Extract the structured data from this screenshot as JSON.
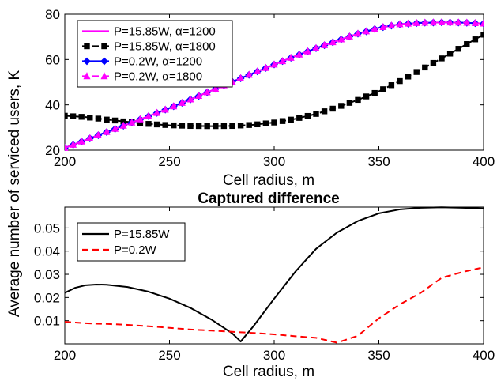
{
  "ylabel_shared": "Average number of serviced users, K",
  "chart_data": [
    {
      "type": "line",
      "title": "",
      "xlabel": "Cell radius, m",
      "ylabel": "",
      "xlim": [
        200,
        400
      ],
      "ylim": [
        20,
        80
      ],
      "xticks": [
        "200",
        "250",
        "300",
        "350",
        "400"
      ],
      "yticks": [
        "20",
        "40",
        "60",
        "80"
      ],
      "grid": false,
      "legend": "top-left",
      "x": [
        200,
        210,
        220,
        230,
        240,
        250,
        260,
        270,
        280,
        290,
        300,
        310,
        320,
        330,
        340,
        350,
        360,
        370,
        380,
        390,
        400
      ],
      "series": [
        {
          "name": "P=15.85W, α=1200",
          "color": "#ff00ff",
          "style": "solid",
          "marker": "none",
          "values": [
            21,
            24.5,
            28,
            31.5,
            35,
            38.6,
            42.4,
            46.3,
            50.2,
            54,
            57.8,
            61.5,
            65,
            68.3,
            71.4,
            74,
            75.6,
            76.2,
            76.4,
            76.3,
            75.9
          ]
        },
        {
          "name": "P=15.85W, α=1800",
          "color": "#000000",
          "style": "dashed",
          "marker": "square",
          "values": [
            35.2,
            34.6,
            33.5,
            32.5,
            31.6,
            31,
            30.7,
            30.6,
            30.7,
            31.2,
            32.2,
            33.8,
            36,
            38.9,
            42.2,
            46,
            50.5,
            55.5,
            60.5,
            65.8,
            71
          ]
        },
        {
          "name": "P=0.2W, α=1200",
          "color": "#0000ff",
          "style": "solid",
          "marker": "diamond",
          "values": [
            21,
            24.5,
            28,
            31.5,
            35,
            38.6,
            42.4,
            46.3,
            50.2,
            54,
            57.8,
            61.5,
            65,
            68.3,
            71.4,
            74,
            75.6,
            76.2,
            76.4,
            76.3,
            75.9
          ]
        },
        {
          "name": "P=0.2W, α=1800",
          "color": "#ff00ff",
          "style": "dashed",
          "marker": "triangle",
          "values": [
            21,
            24.5,
            28,
            31.5,
            35,
            38.6,
            42.4,
            46.3,
            50.2,
            54,
            57.8,
            61.5,
            65,
            68.3,
            71.4,
            74,
            75.6,
            76.2,
            76.4,
            76.3,
            75.9
          ]
        }
      ]
    },
    {
      "type": "line",
      "title": "Captured difference",
      "xlabel": "Cell radius, m",
      "ylabel": "",
      "xlim": [
        200,
        400
      ],
      "ylim": [
        0,
        0.059
      ],
      "xticks": [
        "200",
        "250",
        "300",
        "350",
        "400"
      ],
      "yticks": [
        "0.01",
        "0.02",
        "0.03",
        "0.04",
        "0.05"
      ],
      "grid": false,
      "legend": "top-left",
      "x": [
        200,
        205,
        210,
        215,
        220,
        230,
        240,
        250,
        260,
        270,
        280,
        284,
        290,
        300,
        310,
        320,
        330,
        340,
        350,
        360,
        370,
        380,
        390,
        400
      ],
      "series": [
        {
          "name": "P=15.85W",
          "color": "#000000",
          "style": "solid",
          "values": [
            0.022,
            0.0242,
            0.0253,
            0.0256,
            0.0255,
            0.0245,
            0.0225,
            0.0195,
            0.0155,
            0.0105,
            0.0045,
            0.001,
            0.0075,
            0.0195,
            0.031,
            0.041,
            0.048,
            0.053,
            0.0563,
            0.058,
            0.0587,
            0.0589,
            0.0587,
            0.0584
          ]
        },
        {
          "name": "P=0.2W",
          "color": "#ff0000",
          "style": "dashed",
          "values": [
            0.0095,
            0.0092,
            0.0089,
            0.0087,
            0.0086,
            0.0082,
            0.0076,
            0.0069,
            0.0062,
            0.0057,
            0.0052,
            0.005,
            0.0047,
            0.0041,
            0.0033,
            0.0026,
            0.0005,
            0.0035,
            0.011,
            0.017,
            0.022,
            0.0285,
            0.031,
            0.033
          ]
        }
      ]
    }
  ]
}
